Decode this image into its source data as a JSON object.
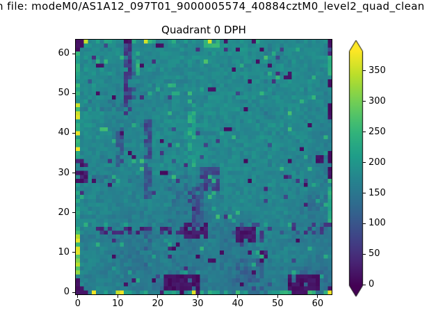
{
  "figure": {
    "background": "#ffffff",
    "text_color": "#000000"
  },
  "suptitle": {
    "text_visible": "n file: modeM0/AS1A12_097T01_9000005574_40884cztM0_level2_quad_clean"
  },
  "title": {
    "text": "Quadrant 0 DPH"
  },
  "chart_data": {
    "type": "heatmap",
    "title": "Quadrant 0 DPH",
    "suptitle_visible": "n file: modeM0/AS1A12_097T01_9000005574_40884cztM0_level2_quad_clean",
    "grid": {
      "width": 64,
      "height": 64
    },
    "x_ticks": [
      0,
      10,
      20,
      30,
      40,
      50,
      60
    ],
    "y_ticks": [
      0,
      10,
      20,
      30,
      40,
      50,
      60
    ],
    "colorbar": {
      "ticks": [
        0,
        50,
        100,
        150,
        200,
        250,
        300,
        350
      ],
      "vmin": -2,
      "vmax": 383,
      "extend": "both",
      "colormap": "viridis",
      "stops": [
        "#440154",
        "#482878",
        "#3e4989",
        "#31688e",
        "#26828e",
        "#1f9e89",
        "#35b779",
        "#6ece58",
        "#b5de2b",
        "#fde725"
      ]
    },
    "appearance": {
      "dominant_teal": "#26828e",
      "low_color": "#440154",
      "high_color": "#fde725"
    },
    "background_16x16": [
      [
        178,
        182,
        183,
        172,
        178,
        182,
        181,
        178,
        186,
        184,
        182,
        181,
        180,
        182,
        180,
        174
      ],
      [
        183,
        178,
        180,
        173,
        176,
        181,
        178,
        176,
        184,
        182,
        181,
        182,
        178,
        180,
        178,
        184
      ],
      [
        186,
        181,
        176,
        172,
        173,
        178,
        176,
        175,
        183,
        180,
        182,
        180,
        176,
        180,
        180,
        172
      ],
      [
        188,
        178,
        172,
        170,
        171,
        178,
        175,
        173,
        183,
        181,
        180,
        182,
        180,
        180,
        179,
        170
      ],
      [
        190,
        180,
        173,
        172,
        173,
        180,
        176,
        172,
        184,
        180,
        180,
        176,
        180,
        182,
        180,
        174
      ],
      [
        188,
        182,
        171,
        173,
        176,
        182,
        180,
        180,
        178,
        173,
        180,
        180,
        180,
        180,
        175,
        166
      ],
      [
        186,
        176,
        169,
        172,
        176,
        180,
        182,
        187,
        178,
        180,
        180,
        180,
        182,
        180,
        178,
        163
      ],
      [
        173,
        172,
        169,
        175,
        176,
        180,
        184,
        193,
        180,
        180,
        178,
        180,
        180,
        173,
        166,
        162
      ],
      [
        169,
        178,
        175,
        178,
        171,
        182,
        178,
        172,
        166,
        180,
        180,
        176,
        180,
        176,
        175,
        161
      ],
      [
        180,
        175,
        171,
        168,
        168,
        174,
        163,
        161,
        161,
        176,
        180,
        175,
        175,
        175,
        172,
        162
      ],
      [
        182,
        172,
        170,
        165,
        168,
        170,
        159,
        153,
        163,
        172,
        175,
        175,
        175,
        170,
        163,
        158
      ],
      [
        176,
        170,
        166,
        159,
        165,
        168,
        161,
        145,
        152,
        152,
        157,
        175,
        170,
        163,
        153,
        158
      ],
      [
        166,
        159,
        153,
        149,
        156,
        162,
        158,
        142,
        162,
        142,
        152,
        170,
        165,
        160,
        155,
        150
      ],
      [
        172,
        170,
        162,
        147,
        162,
        165,
        153,
        156,
        162,
        158,
        156,
        168,
        170,
        172,
        162,
        155
      ],
      [
        170,
        163,
        165,
        151,
        160,
        165,
        142,
        142,
        156,
        151,
        146,
        162,
        165,
        160,
        142,
        141
      ],
      [
        152,
        175,
        162,
        153,
        153,
        133,
        113,
        122,
        168,
        142,
        132,
        156,
        162,
        122,
        112,
        141
      ]
    ],
    "features": [
      {
        "name": "dark-column-upper-left",
        "x": [
          12,
          13
        ],
        "y": [
          45,
          62
        ],
        "v": 70,
        "jit": 30,
        "p": 0.85
      },
      {
        "name": "dark-column-upper-left-edge",
        "x": [
          14,
          14
        ],
        "y": [
          49,
          55
        ],
        "v": 110,
        "jit": 30,
        "p": 0.5
      },
      {
        "name": "dark-streak-x10",
        "x": [
          10,
          11
        ],
        "y": [
          32,
          41
        ],
        "v": 105,
        "jit": 30,
        "p": 0.7
      },
      {
        "name": "dark-column-x17-upper",
        "x": [
          17,
          18
        ],
        "y": [
          24,
          44
        ],
        "v": 95,
        "jit": 30,
        "p": 0.75
      },
      {
        "name": "dim-column-x17-lower",
        "x": [
          17,
          18
        ],
        "y": [
          0,
          16
        ],
        "v": 130,
        "jit": 35,
        "p": 0.6
      },
      {
        "name": "dark-blob-left-edge",
        "x": [
          0,
          2
        ],
        "y": [
          28,
          33
        ],
        "v": 25,
        "jit": 18,
        "p": 0.88
      },
      {
        "name": "mottled-row-y28",
        "x": [
          2,
          16
        ],
        "y": [
          28,
          29
        ],
        "v": 125,
        "jit": 50,
        "p": 0.4
      },
      {
        "name": "dark-row-y15-left",
        "x": [
          2,
          26
        ],
        "y": [
          15,
          16
        ],
        "v": 50,
        "jit": 30,
        "p": 0.5
      },
      {
        "name": "dark-row-y15-right",
        "x": [
          39,
          63
        ],
        "y": [
          15,
          17
        ],
        "v": 70,
        "jit": 40,
        "p": 0.45
      },
      {
        "name": "dark-blob-center",
        "x": [
          27,
          32
        ],
        "y": [
          14,
          17
        ],
        "v": 25,
        "jit": 15,
        "p": 0.85
      },
      {
        "name": "dark-blob-center-right",
        "x": [
          40,
          44
        ],
        "y": [
          13,
          16
        ],
        "v": 22,
        "jit": 15,
        "p": 0.85
      },
      {
        "name": "dark-arc-vertical",
        "x": [
          29,
          31
        ],
        "y": [
          17,
          27
        ],
        "v": 95,
        "jit": 30,
        "p": 0.8
      },
      {
        "name": "dark-arc-top",
        "x": [
          31,
          35
        ],
        "y": [
          26,
          31
        ],
        "v": 85,
        "jit": 35,
        "p": 0.65
      },
      {
        "name": "dim-region-left-of-arc",
        "x": [
          23,
          28
        ],
        "y": [
          18,
          30
        ],
        "v": 150,
        "jit": 25,
        "p": 0.55
      },
      {
        "name": "green-dashes-x28",
        "x": [
          28,
          29
        ],
        "y": [
          32,
          45
        ],
        "v": 230,
        "jit": 25,
        "p": 0.55
      },
      {
        "name": "dark-blob-bottom-center",
        "x": [
          22,
          30
        ],
        "y": [
          0,
          4
        ],
        "v": 15,
        "jit": 12,
        "p": 0.9
      },
      {
        "name": "dark-blob-bottom-right",
        "x": [
          53,
          60
        ],
        "y": [
          1,
          4
        ],
        "v": 15,
        "jit": 12,
        "p": 0.92
      },
      {
        "name": "dark-pair-right-mid",
        "x": [
          60,
          61
        ],
        "y": [
          33,
          34
        ],
        "v": 18,
        "jit": 10,
        "p": 1
      },
      {
        "name": "dim-region-bottom-right",
        "x": [
          40,
          46
        ],
        "y": [
          3,
          8
        ],
        "v": 130,
        "jit": 30,
        "p": 0.6
      },
      {
        "name": "dim-region-right",
        "x": [
          58,
          62
        ],
        "y": [
          16,
          24
        ],
        "v": 150,
        "jit": 25,
        "p": 0.5
      },
      {
        "name": "dark-dashes-bottom",
        "x": [
          44,
          49
        ],
        "y": [
          0,
          2
        ],
        "v": 90,
        "jit": 45,
        "p": 0.5
      },
      {
        "name": "dim-rows-left",
        "x": [
          1,
          15
        ],
        "y": [
          46,
          48
        ],
        "v": 158,
        "jit": 22,
        "p": 0.45
      },
      {
        "name": "seam-column-x47",
        "x": [
          47,
          48
        ],
        "y": [
          32,
          63
        ],
        "v": 162,
        "jit": 20,
        "p": 0.28
      },
      {
        "name": "left-edge-bright-strip",
        "x": [
          0,
          0
        ],
        "y": [
          5,
          15
        ],
        "v": 295,
        "jit": 55,
        "p": 1
      },
      {
        "name": "left-edge-green-lower",
        "x": [
          0,
          0
        ],
        "y": [
          16,
          27
        ],
        "v": 205,
        "jit": 30,
        "p": 1
      },
      {
        "name": "left-edge-green-upper",
        "x": [
          0,
          0
        ],
        "y": [
          34,
          60
        ],
        "v": 225,
        "jit": 45,
        "p": 1
      },
      {
        "name": "right-edge-green-upper",
        "x": [
          63,
          63
        ],
        "y": [
          55,
          59
        ],
        "v": 255,
        "jit": 25,
        "p": 1
      },
      {
        "name": "right-edge-green-mid",
        "x": [
          63,
          63
        ],
        "y": [
          18,
          26
        ],
        "v": 230,
        "jit": 25,
        "p": 1
      },
      {
        "name": "bottom-row-green",
        "x": [
          1,
          63
        ],
        "y": [
          0,
          0
        ],
        "v": 195,
        "jit": 35,
        "p": 0.75
      },
      {
        "name": "top-row-mottle",
        "x": [
          2,
          35
        ],
        "y": [
          63,
          63
        ],
        "v": 200,
        "jit": 40,
        "p": 0.55
      },
      {
        "name": "top-green-cluster",
        "x": [
          32,
          35
        ],
        "y": [
          62,
          63
        ],
        "v": 245,
        "jit": 20,
        "p": 0.9
      }
    ],
    "cells": {
      "dark": [
        [
          0,
          63
        ],
        [
          1,
          63
        ],
        [
          0,
          62
        ],
        [
          1,
          62
        ],
        [
          0,
          61
        ],
        [
          63,
          63
        ],
        [
          63,
          62
        ],
        [
          0,
          0
        ],
        [
          1,
          0
        ],
        [
          2,
          0
        ],
        [
          0,
          1
        ],
        [
          1,
          1
        ],
        [
          0,
          2
        ],
        [
          0,
          3
        ],
        [
          62,
          0
        ],
        [
          63,
          1
        ],
        [
          63,
          33
        ],
        [
          63,
          34
        ],
        [
          63,
          35
        ],
        [
          63,
          44
        ],
        [
          63,
          45
        ],
        [
          63,
          46
        ],
        [
          63,
          47
        ],
        [
          63,
          52
        ],
        [
          63,
          53
        ],
        [
          63,
          29
        ],
        [
          63,
          30
        ],
        [
          63,
          31
        ],
        [
          12,
          63
        ],
        [
          13,
          63
        ],
        [
          20,
          62
        ],
        [
          21,
          62
        ],
        [
          37,
          63
        ],
        [
          44,
          63
        ],
        [
          5,
          57
        ],
        [
          6,
          57
        ],
        [
          5,
          50
        ],
        [
          9,
          49
        ],
        [
          11,
          40
        ],
        [
          21,
          38
        ],
        [
          21,
          30
        ],
        [
          22,
          30
        ],
        [
          14,
          34
        ],
        [
          13,
          35
        ],
        [
          16,
          57
        ],
        [
          40,
          61
        ],
        [
          46,
          61
        ],
        [
          39,
          56
        ],
        [
          43,
          53
        ],
        [
          33,
          51
        ],
        [
          34,
          51
        ],
        [
          45,
          58
        ],
        [
          48,
          57
        ],
        [
          52,
          54
        ],
        [
          53,
          54
        ],
        [
          42,
          46
        ],
        [
          37,
          41
        ],
        [
          38,
          41
        ],
        [
          58,
          42
        ],
        [
          42,
          33
        ],
        [
          53,
          33
        ],
        [
          56,
          36
        ],
        [
          43,
          28
        ],
        [
          57,
          27
        ],
        [
          55,
          13
        ],
        [
          46,
          8
        ],
        [
          47,
          9
        ],
        [
          46,
          10
        ],
        [
          44,
          5
        ],
        [
          41,
          2
        ],
        [
          33,
          8
        ],
        [
          34,
          8
        ],
        [
          36,
          10
        ],
        [
          30,
          9
        ],
        [
          24,
          11
        ],
        [
          25,
          12
        ],
        [
          9,
          9
        ],
        [
          12,
          2
        ],
        [
          8,
          27
        ],
        [
          4,
          28
        ],
        [
          54,
          0
        ],
        [
          55,
          0
        ],
        [
          56,
          0
        ],
        [
          57,
          0
        ]
      ],
      "green": [
        [
          15,
          55
        ],
        [
          15,
          56
        ],
        [
          15,
          57
        ],
        [
          15,
          58
        ],
        [
          15,
          60
        ],
        [
          28,
          48
        ],
        [
          29,
          47
        ],
        [
          29,
          45
        ],
        [
          28,
          50
        ],
        [
          33,
          29
        ],
        [
          34,
          28
        ],
        [
          34,
          25
        ],
        [
          33,
          24
        ],
        [
          34,
          21
        ],
        [
          35,
          19
        ],
        [
          6,
          41
        ],
        [
          7,
          41
        ],
        [
          61,
          4
        ],
        [
          58,
          0
        ],
        [
          59,
          0
        ],
        [
          62,
          0
        ],
        [
          33,
          0
        ],
        [
          34,
          0
        ],
        [
          35,
          0
        ],
        [
          51,
          0
        ],
        [
          52,
          0
        ],
        [
          53,
          0
        ],
        [
          40,
          0
        ],
        [
          63,
          28
        ],
        [
          62,
          22
        ],
        [
          18,
          63
        ],
        [
          19,
          63
        ],
        [
          9,
          29
        ],
        [
          10,
          28
        ],
        [
          16,
          33
        ],
        [
          38,
          19
        ],
        [
          39,
          18
        ],
        [
          63,
          19
        ],
        [
          63,
          20
        ]
      ],
      "yellow": [
        [
          0,
          10
        ],
        [
          0,
          11
        ],
        [
          0,
          13
        ],
        [
          0,
          36
        ],
        [
          0,
          40
        ],
        [
          0,
          44
        ],
        [
          0,
          45
        ],
        [
          0,
          47
        ],
        [
          4,
          0
        ],
        [
          10,
          0
        ],
        [
          11,
          0
        ],
        [
          29,
          0
        ],
        [
          2,
          63
        ],
        [
          17,
          63
        ],
        [
          33,
          63
        ],
        [
          63,
          0
        ]
      ]
    },
    "noise": {
      "sd": 14,
      "p_low": 0.02,
      "low_drop": 110,
      "p_high": 0.015,
      "high_add": 65
    },
    "seed": 42
  }
}
